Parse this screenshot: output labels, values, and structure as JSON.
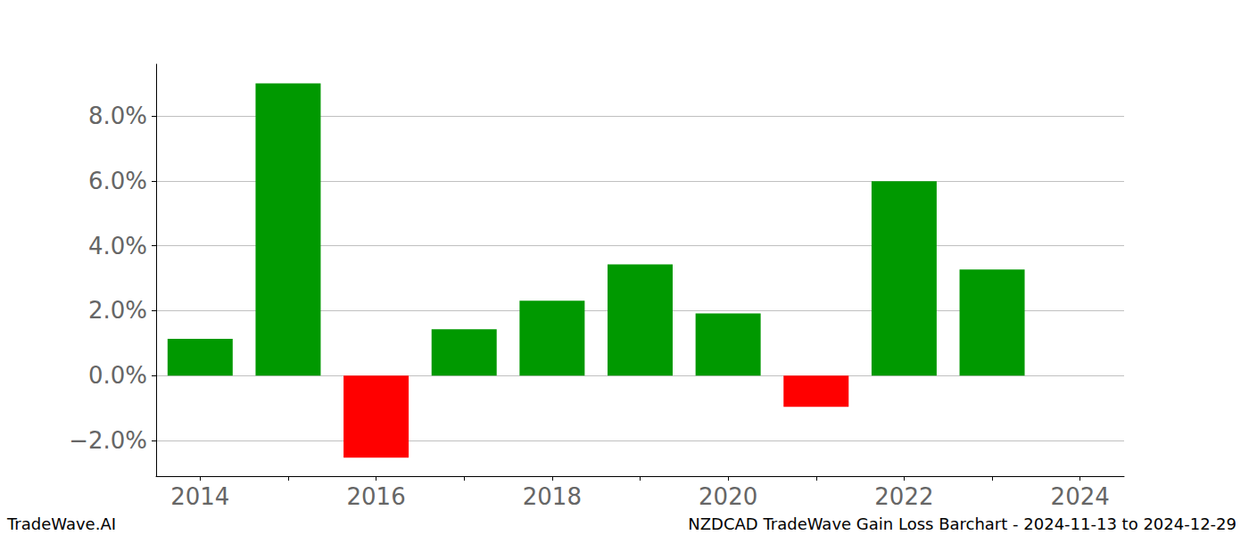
{
  "chart_data": {
    "type": "bar",
    "title": "NZDCAD TradeWave Gain Loss Barchart - 2024-11-13 to 2024-12-29",
    "annotations": [
      "TradeWave.AI"
    ],
    "categories": [
      "2014",
      null,
      "2016",
      null,
      "2018",
      null,
      "2020",
      null,
      "2022",
      null,
      "2024"
    ],
    "values": [
      1.13,
      9.01,
      -2.53,
      1.43,
      2.31,
      3.43,
      1.92,
      -0.96,
      5.99,
      3.27,
      null
    ],
    "colors": [
      "#009900",
      "#009900",
      "#ff0000",
      "#009900",
      "#009900",
      "#009900",
      "#009900",
      "#ff0000",
      "#009900",
      "#009900",
      "#009900"
    ],
    "ylim": [
      -3.1,
      9.6
    ],
    "yticks": [
      {
        "value": -2,
        "label": "−2.0%"
      },
      {
        "value": 0,
        "label": "0.0%"
      },
      {
        "value": 2,
        "label": "2.0%"
      },
      {
        "value": 4,
        "label": "4.0%"
      },
      {
        "value": 6,
        "label": "6.0%"
      },
      {
        "value": 8,
        "label": "8.0%"
      }
    ],
    "grid": true
  }
}
